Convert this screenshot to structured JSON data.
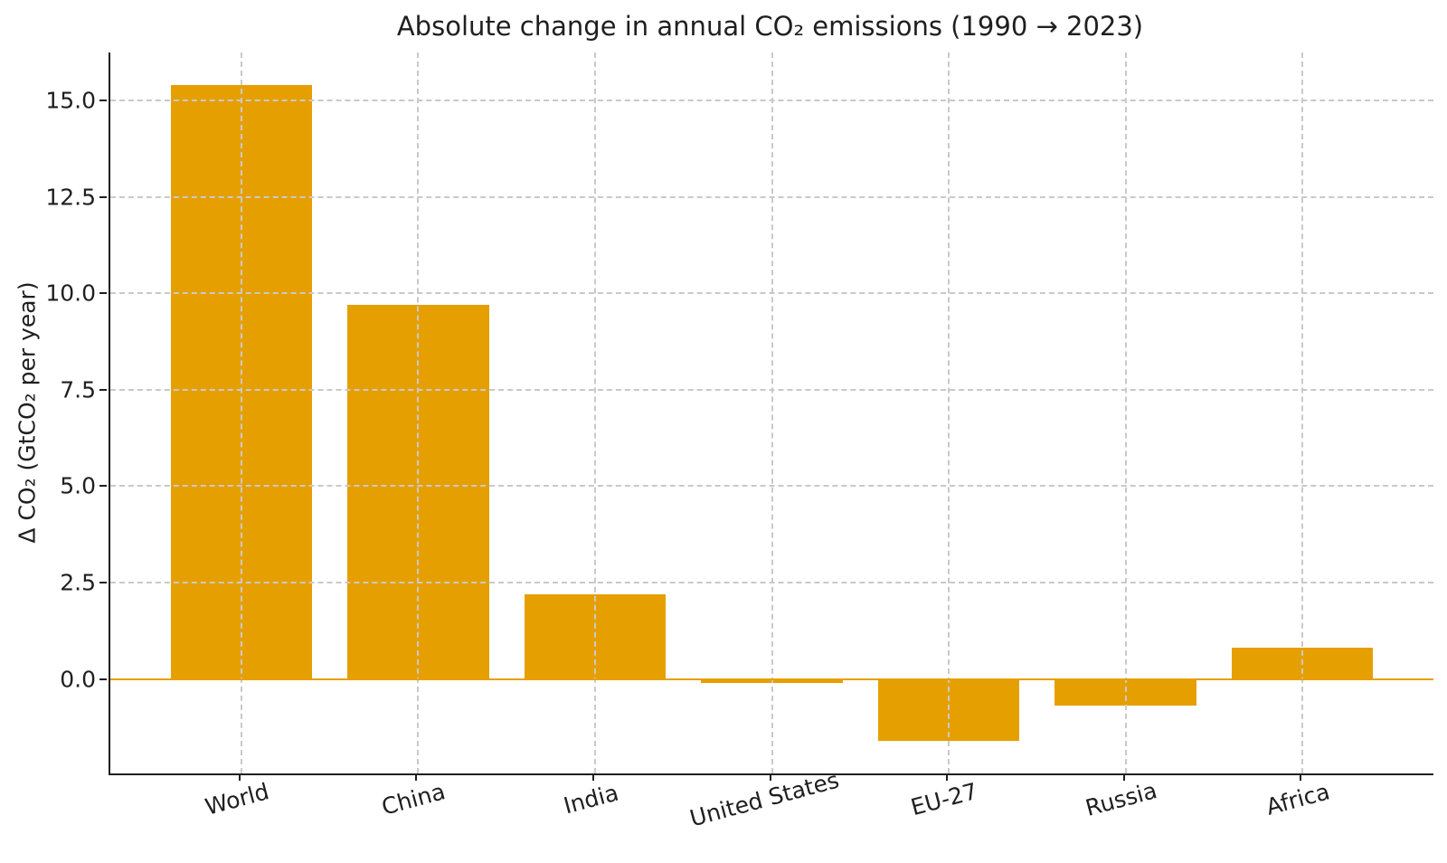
{
  "chart_data": {
    "type": "bar",
    "title": "Absolute change in annual CO₂ emissions (1990 → 2023)",
    "ylabel": "Δ CO₂ (GtCO₂ per year)",
    "xlabel": "",
    "categories": [
      "World",
      "China",
      "India",
      "United States",
      "EU-27",
      "Russia",
      "Africa"
    ],
    "values": [
      15.4,
      9.7,
      2.2,
      -0.1,
      -1.6,
      -0.7,
      0.8
    ],
    "ylim": [
      -2.45,
      16.25
    ],
    "xlim": [
      -0.74,
      6.74
    ],
    "yticks": [
      0.0,
      2.5,
      5.0,
      7.5,
      10.0,
      12.5,
      15.0
    ],
    "ytick_labels": [
      "0.0",
      "2.5",
      "5.0",
      "7.5",
      "10.0",
      "12.5",
      "15.0"
    ],
    "bar_width_fraction": 0.8,
    "bar_color": "#E69F00",
    "zero_line_color": "#E69F00",
    "grid": "both",
    "grid_line_style": "dashed",
    "grid_color": "#c9c9c9",
    "legend": "none",
    "x_tick_label_rotation_deg": 15,
    "spines": "left and bottom only"
  }
}
